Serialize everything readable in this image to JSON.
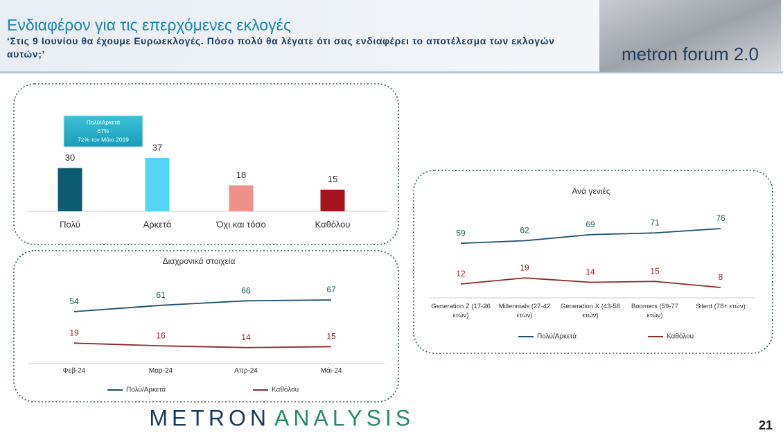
{
  "header": {
    "title": "Ενδιαφέρον για τις επερχόμενες εκλογές",
    "subtitle": "‘Στις 9 Ιουνίου θα έχουμε Ευρωεκλογές. Πόσο πολύ θα λέγατε ότι σας ενδιαφέρει το αποτέλεσμα των εκλογών αυτών;’",
    "logo": "metron forum 2.0"
  },
  "chart_data": [
    {
      "type": "bar",
      "categories": [
        "Πολύ",
        "Αρκετά",
        "Όχι και τόσο",
        "Καθόλου"
      ],
      "values": [
        30,
        37,
        18,
        15
      ],
      "colors": [
        "#0e5a73",
        "#55d6f5",
        "#f0908a",
        "#a5141e"
      ],
      "annotation": [
        "Πολύ/Αρκετά",
        "67%",
        "72% τον Μάιο 2019"
      ]
    },
    {
      "type": "line",
      "title": "Διαχρονικά στοιχεία",
      "categories": [
        "Φεβ-24",
        "Μαρ-24",
        "Απρ-24",
        "Μάι-24"
      ],
      "series": [
        {
          "name": "Πολύ/Αρκετά",
          "color": "#1f4e6b",
          "values": [
            54,
            61,
            66,
            67
          ]
        },
        {
          "name": "Καθόλου",
          "color": "#8b2a2a",
          "values": [
            19,
            16,
            14,
            15
          ]
        }
      ]
    },
    {
      "type": "line",
      "title": "Ανά γενιές",
      "categories": [
        "Generation Z (17-26 ετών)",
        "Millennials (27-42 ετών)",
        "Generation X (43-58 ετών)",
        "Boomers (59-77 ετών)",
        "Silent (78+ ετών)"
      ],
      "series": [
        {
          "name": "Πολύ/Αρκετά",
          "color": "#1f4e6b",
          "values": [
            59,
            62,
            69,
            71,
            76
          ]
        },
        {
          "name": "Καθόλου",
          "color": "#8b2a2a",
          "values": [
            12,
            19,
            14,
            15,
            8
          ]
        }
      ]
    }
  ],
  "footer": {
    "brand_left": "METRON",
    "brand_right": "ANALYSIS",
    "page": "21"
  }
}
